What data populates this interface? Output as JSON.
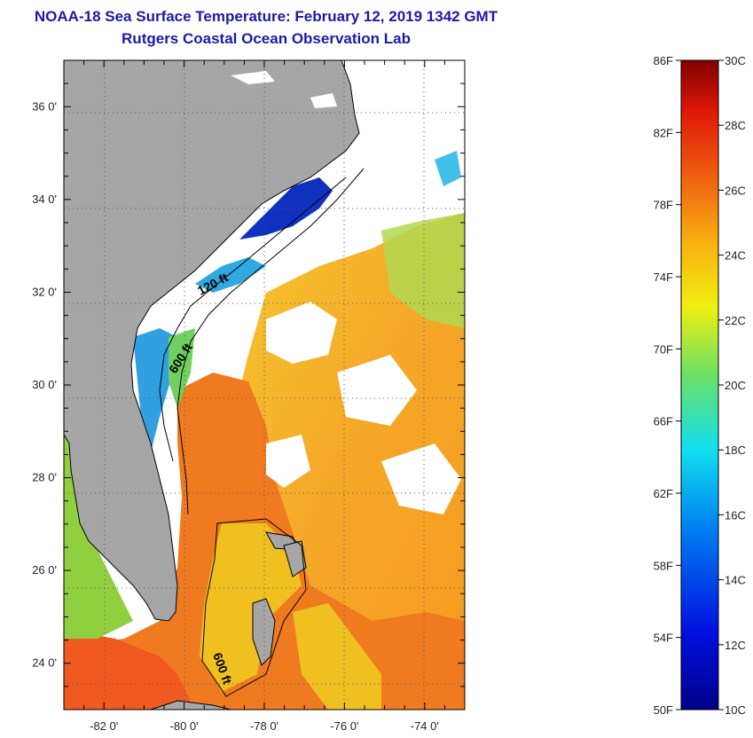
{
  "title": "NOAA-18 Sea Surface Temperature:  February 12, 2019 1342 GMT",
  "subtitle": "Rutgers Coastal Ocean Observation Lab",
  "map": {
    "lon_range": [
      -83.0,
      -73.0
    ],
    "lat_range": [
      23.0,
      37.0
    ],
    "lat_ticks": [
      {
        "value": 36,
        "label": "36 0'"
      },
      {
        "value": 34,
        "label": "34 0'"
      },
      {
        "value": 32,
        "label": "32 0'"
      },
      {
        "value": 30,
        "label": "30 0'"
      },
      {
        "value": 28,
        "label": "28 0'"
      },
      {
        "value": 26,
        "label": "26 0'"
      },
      {
        "value": 24,
        "label": "24 0'"
      }
    ],
    "lon_ticks": [
      {
        "value": -82,
        "label": "-82 0'"
      },
      {
        "value": -80,
        "label": "-80 0'"
      },
      {
        "value": -78,
        "label": "-78 0'"
      },
      {
        "value": -76,
        "label": "-76 0'"
      },
      {
        "value": -74,
        "label": "-74 0'"
      }
    ],
    "isobaths": [
      {
        "label": "120 ft"
      },
      {
        "label": "600 ft"
      },
      {
        "label": "600 ft"
      }
    ],
    "colors": {
      "land": "#a6a6a6",
      "cloud": "#ffffff",
      "cold_shelf": "#1030c0",
      "gulf_stream": "#f07a1a",
      "warm_offshore": "#f5c21a",
      "mid_shelf": "#30b0e0"
    }
  },
  "colorbar": {
    "fahrenheit_labels": [
      "86F",
      "82F",
      "78F",
      "74F",
      "70F",
      "66F",
      "62F",
      "58F",
      "54F",
      "50F"
    ],
    "celsius_labels": [
      "30C",
      "28C",
      "26C",
      "24C",
      "22C",
      "20C",
      "18C",
      "16C",
      "14C",
      "12C",
      "10C"
    ],
    "range_c": [
      10,
      30
    ]
  }
}
